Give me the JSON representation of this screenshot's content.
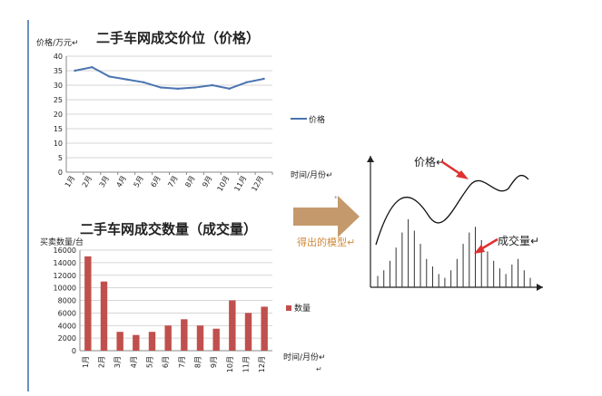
{
  "marks": {
    "return": "↵"
  },
  "chart_data": [
    {
      "type": "line",
      "title": "二手车网成交价位（价格）",
      "ylabel": "价格/万元",
      "xlabel": "时间/月份",
      "categories": [
        "1月",
        "2月",
        "3月",
        "4月",
        "5月",
        "6月",
        "7月",
        "8月",
        "9月",
        "10月",
        "11月",
        "12月"
      ],
      "series": [
        {
          "name": "价格",
          "values": [
            35,
            36.2,
            33,
            32,
            31,
            29.2,
            28.8,
            29.2,
            30,
            28.8,
            31,
            32.2
          ],
          "color": "#4a74b0"
        }
      ],
      "ylim": [
        0,
        40
      ],
      "yticks": [
        0,
        5,
        10,
        15,
        20,
        25,
        30,
        35,
        40
      ],
      "grid": true,
      "legend": "right"
    },
    {
      "type": "bar",
      "title": "二手车网成交数量（成交量）",
      "ylabel": "买卖数量/台",
      "xlabel": "时间/月份",
      "categories": [
        "1月",
        "2月",
        "3月",
        "4月",
        "5月",
        "6月",
        "7月",
        "8月",
        "9月",
        "10月",
        "11月",
        "12月"
      ],
      "series": [
        {
          "name": "数量",
          "values": [
            15000,
            11000,
            3000,
            2500,
            3000,
            4000,
            5000,
            4000,
            3500,
            8000,
            6000,
            7000
          ],
          "color": "#c0504d"
        }
      ],
      "ylim": [
        0,
        16000
      ],
      "yticks": [
        0,
        2000,
        4000,
        6000,
        8000,
        10000,
        12000,
        14000,
        16000
      ],
      "grid": true,
      "legend": "right"
    }
  ],
  "arrow": {
    "label": "得出的模型",
    "color": "#c49a6c"
  },
  "model": {
    "price_label": "价格",
    "volume_label": "成交量",
    "bars": [
      12,
      18,
      28,
      42,
      58,
      72,
      60,
      46,
      30,
      22,
      14,
      10,
      18,
      30,
      46,
      58,
      64,
      50,
      38,
      28,
      20,
      14,
      24,
      30,
      18,
      10
    ]
  }
}
